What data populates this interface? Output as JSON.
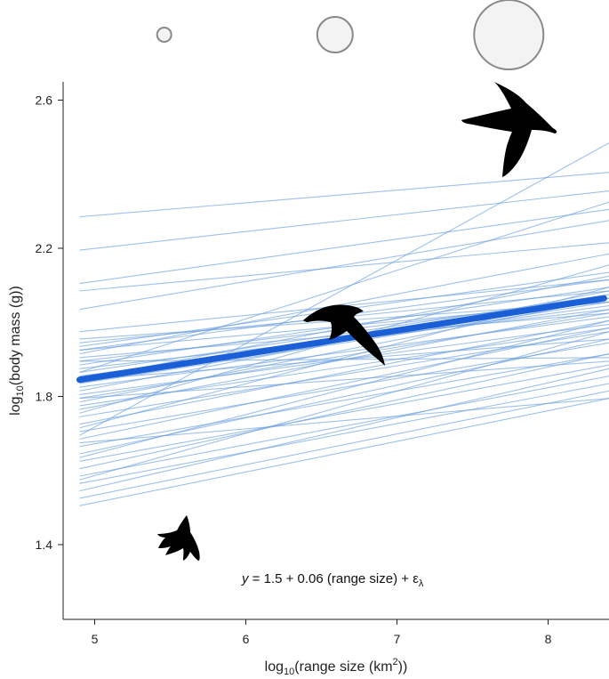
{
  "chart_data": {
    "type": "line",
    "xlabel": {
      "pre": "log",
      "sub": "10",
      "mid": "(range size (km",
      "sup": "2",
      "post": "))"
    },
    "ylabel": {
      "pre": "log",
      "sub": "10",
      "post": "(body mass (g))"
    },
    "xlim": [
      4.85,
      8.4
    ],
    "ylim": [
      1.2,
      2.77
    ],
    "xticks": [
      5,
      6,
      7,
      8
    ],
    "yticks": [
      1.4,
      1.8,
      2.2,
      2.6
    ],
    "xtick_labels": [
      "5",
      "6",
      "7",
      "8"
    ],
    "ytick_labels": [
      "1.4",
      "1.8",
      "2.2",
      "2.6"
    ],
    "equation": {
      "y": "y",
      "rest": " = 1.5 + 0.06 (range size) + ε",
      "sub": "λ"
    },
    "mean_line": {
      "x": [
        4.9,
        8.37
      ],
      "y": [
        1.845,
        2.065
      ],
      "color": "#1a5fd6"
    },
    "posterior_lines_color": "#6a9ee0",
    "posterior_lines": [
      [
        2.285,
        2.405
      ],
      [
        2.195,
        2.355
      ],
      [
        2.105,
        2.305
      ],
      [
        2.085,
        2.215
      ],
      [
        2.035,
        2.275
      ],
      [
        1.955,
        2.055
      ],
      [
        1.945,
        2.085
      ],
      [
        1.935,
        2.135
      ],
      [
        1.925,
        2.115
      ],
      [
        1.915,
        2.185
      ],
      [
        1.905,
        2.025
      ],
      [
        1.895,
        2.065
      ],
      [
        1.885,
        2.095
      ],
      [
        1.875,
        2.035
      ],
      [
        1.865,
        2.075
      ],
      [
        1.855,
        2.045
      ],
      [
        1.845,
        2.125
      ],
      [
        1.835,
        2.055
      ],
      [
        1.825,
        2.015
      ],
      [
        1.815,
        2.085
      ],
      [
        1.805,
        1.995
      ],
      [
        1.795,
        2.025
      ],
      [
        1.785,
        2.065
      ],
      [
        1.775,
        1.985
      ],
      [
        1.765,
        2.035
      ],
      [
        1.745,
        1.975
      ],
      [
        1.725,
        2.005
      ],
      [
        1.705,
        1.945
      ],
      [
        1.685,
        1.985
      ],
      [
        1.665,
        1.915
      ],
      [
        1.645,
        1.955
      ],
      [
        1.625,
        1.885
      ],
      [
        1.605,
        1.915
      ],
      [
        1.585,
        1.855
      ],
      [
        1.565,
        1.835
      ],
      [
        1.545,
        1.875
      ],
      [
        1.525,
        1.815
      ],
      [
        1.505,
        1.795
      ],
      [
        1.695,
        2.485
      ],
      [
        1.755,
        2.155
      ],
      [
        1.865,
        2.325
      ],
      [
        1.635,
        2.005
      ],
      [
        1.895,
        1.905
      ],
      [
        1.795,
        1.895
      ],
      [
        1.975,
        2.115
      ],
      [
        1.675,
        1.795
      ],
      [
        1.925,
        2.055
      ],
      [
        1.715,
        2.095
      ],
      [
        1.845,
        1.955
      ],
      [
        1.575,
        1.975
      ]
    ],
    "size_legend": {
      "x": [
        5.46,
        6.59,
        7.74
      ],
      "r": [
        8,
        20,
        39
      ],
      "fill": "#f3f3f3",
      "stroke": "#888888"
    },
    "silhouettes": [
      "large-seabird-icon",
      "medium-seabird-icon",
      "small-bird-icon"
    ]
  }
}
